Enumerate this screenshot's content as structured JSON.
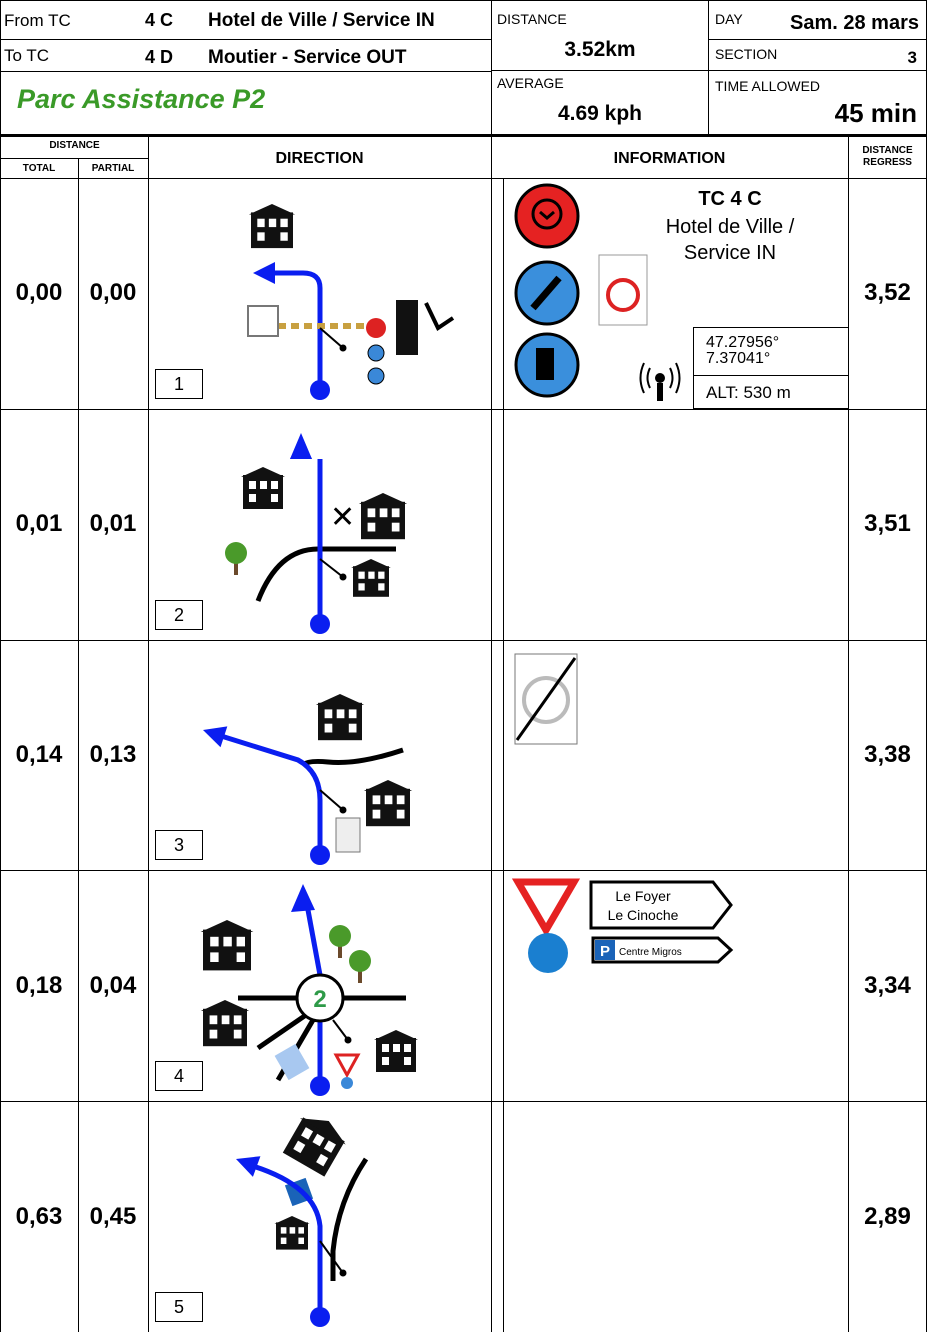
{
  "header": {
    "from_label": "From TC",
    "from_tc": "4 C",
    "from_name": "Hotel de Ville / Service IN",
    "to_label": "To TC",
    "to_tc": "4 D",
    "to_name": "Moutier - Service OUT",
    "stage": "Parc Assistance P2",
    "distance_label": "DISTANCE",
    "distance": "3.52km",
    "average_label": "AVERAGE",
    "average": "4.69 kph",
    "day_label": "DAY",
    "day": "Sam. 28 mars",
    "section_label": "SECTION",
    "section": "3",
    "time_label": "TIME ALLOWED",
    "time": "45 min"
  },
  "columns": {
    "distance": "DISTANCE",
    "total": "TOTAL",
    "partial": "PARTIAL",
    "direction": "DIRECTION",
    "information": "INFORMATION",
    "regress_1": "DISTANCE",
    "regress_2": "REGRESS"
  },
  "rows": [
    {
      "total": "0,00",
      "partial": "0,00",
      "number": "1",
      "regress": "3,52",
      "info": {
        "title": "TC 4 C",
        "text_1": "Hotel de Ville /",
        "text_2": "Service IN",
        "lat": "47.27956°",
        "lon": "7.37041°",
        "alt": "ALT: 530 m"
      }
    },
    {
      "total": "0,01",
      "partial": "0,01",
      "number": "2",
      "regress": "3,51"
    },
    {
      "total": "0,14",
      "partial": "0,13",
      "number": "3",
      "regress": "3,38"
    },
    {
      "total": "0,18",
      "partial": "0,04",
      "number": "4",
      "regress": "3,34",
      "roundabout": "2",
      "info": {
        "sign_1a": "Le Foyer",
        "sign_1b": "Le Cinoche",
        "sign_2p": "P",
        "sign_2": "Centre Migros"
      }
    },
    {
      "total": "0,63",
      "partial": "0,45",
      "number": "5",
      "regress": "2,89"
    }
  ]
}
